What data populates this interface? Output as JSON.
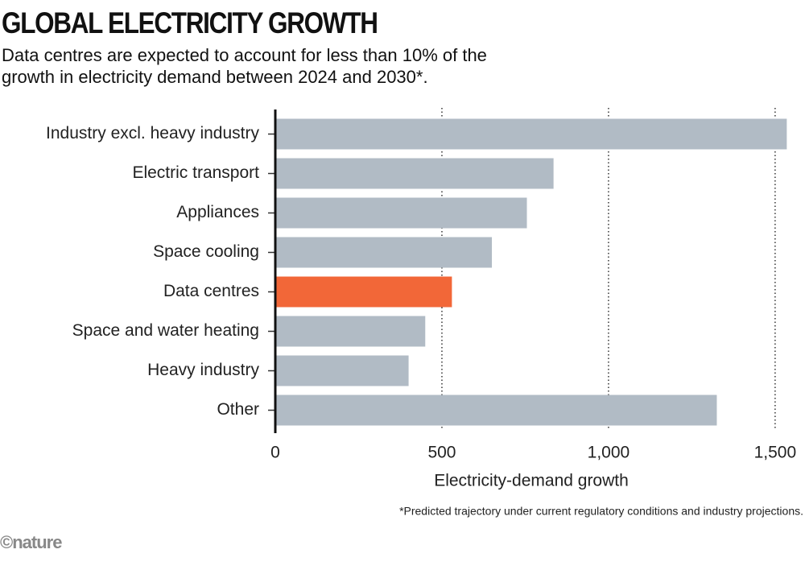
{
  "chart_data": {
    "type": "bar",
    "orientation": "horizontal",
    "title": "GLOBAL ELECTRICITY GROWTH",
    "subtitle": "Data centres are expected to account for less than 10% of the growth in electricity demand between 2024 and 2030*.",
    "categories": [
      "Industry excl. heavy industry",
      "Electric transport",
      "Appliances",
      "Space cooling",
      "Data centres",
      "Space and water heating",
      "Heavy industry",
      "Other"
    ],
    "values": [
      1535,
      835,
      755,
      650,
      530,
      450,
      400,
      1325
    ],
    "colors": [
      "#b1bbc5",
      "#b1bbc5",
      "#b1bbc5",
      "#b1bbc5",
      "#f26738",
      "#b1bbc5",
      "#b1bbc5",
      "#b1bbc5"
    ],
    "xlim": [
      0,
      1580
    ],
    "xticks": [
      0,
      500,
      {
        "value": 1000,
        "label": "1,000"
      },
      {
        "value": 1500,
        "label": "1,500"
      }
    ],
    "xlabel": "Electricity-demand growth",
    "grid": true,
    "footnote": "*Predicted trajectory under current regulatory conditions and industry projections.",
    "source": "©nature"
  }
}
